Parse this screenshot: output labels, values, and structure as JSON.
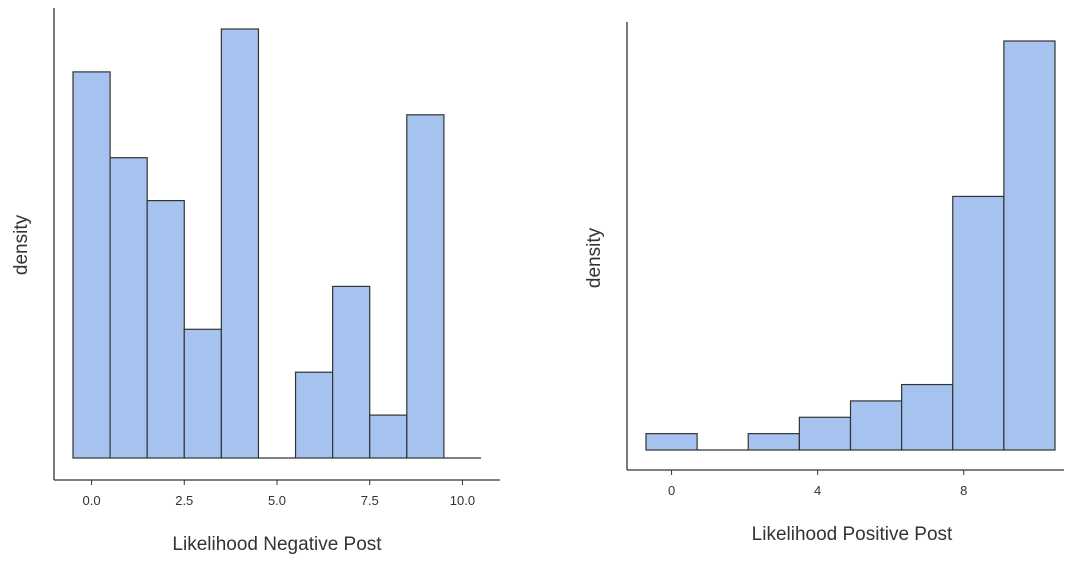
{
  "chart_data": [
    {
      "type": "bar",
      "subtype": "histogram",
      "xlabel": "Likelihood Negative Post",
      "ylabel": "density",
      "xlim": [
        -0.5,
        10.5
      ],
      "ylim": [
        0,
        1
      ],
      "x_ticks": [
        0.0,
        2.5,
        5.0,
        7.5,
        10.0
      ],
      "x_tick_labels": [
        "0.0",
        "2.5",
        "5.0",
        "7.5",
        "10.0"
      ],
      "y_ticks_shown": false,
      "bar_color": "#a6c3f0",
      "bar_edge_color": "#333333",
      "bins": [
        {
          "x0": -0.5,
          "x1": 0.5,
          "value": 0.9
        },
        {
          "x0": 0.5,
          "x1": 1.5,
          "value": 0.7
        },
        {
          "x0": 1.5,
          "x1": 2.5,
          "value": 0.6
        },
        {
          "x0": 2.5,
          "x1": 3.5,
          "value": 0.3
        },
        {
          "x0": 3.5,
          "x1": 4.5,
          "value": 1.0
        },
        {
          "x0": 4.5,
          "x1": 5.5,
          "value": 0.0
        },
        {
          "x0": 5.5,
          "x1": 6.5,
          "value": 0.2
        },
        {
          "x0": 6.5,
          "x1": 7.5,
          "value": 0.4
        },
        {
          "x0": 7.5,
          "x1": 8.5,
          "value": 0.1
        },
        {
          "x0": 8.5,
          "x1": 9.5,
          "value": 0.8
        },
        {
          "x0": 9.5,
          "x1": 10.5,
          "value": 0.0
        }
      ]
    },
    {
      "type": "bar",
      "subtype": "histogram",
      "xlabel": "Likelihood Positive Post",
      "ylabel": "density",
      "xlim": [
        -0.8,
        10.8
      ],
      "ylim": [
        0,
        1
      ],
      "x_ticks": [
        0,
        4,
        8
      ],
      "x_tick_labels": [
        "0",
        "4",
        "8"
      ],
      "y_ticks_shown": false,
      "bar_color": "#a6c3f0",
      "bar_edge_color": "#333333",
      "bins": [
        {
          "x0": -0.7,
          "x1": 0.7,
          "value": 0.04
        },
        {
          "x0": 0.7,
          "x1": 2.1,
          "value": 0.0
        },
        {
          "x0": 2.1,
          "x1": 3.5,
          "value": 0.04
        },
        {
          "x0": 3.5,
          "x1": 4.9,
          "value": 0.08
        },
        {
          "x0": 4.9,
          "x1": 6.3,
          "value": 0.12
        },
        {
          "x0": 6.3,
          "x1": 7.7,
          "value": 0.16
        },
        {
          "x0": 7.7,
          "x1": 9.1,
          "value": 0.62
        },
        {
          "x0": 9.1,
          "x1": 10.5,
          "value": 1.0
        }
      ]
    }
  ]
}
